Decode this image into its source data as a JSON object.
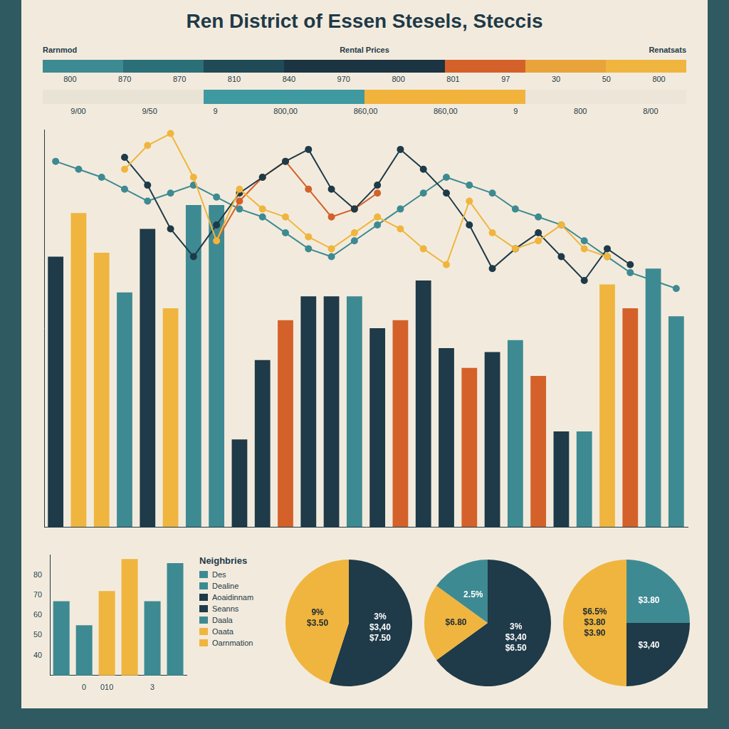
{
  "title": "Ren District of Essen Stesels, Steccis",
  "header": {
    "left": "Rarnmod",
    "center": "Rental Prices",
    "right": "Renatsats"
  },
  "scales": [
    {
      "colors": [
        "#3e8a92",
        "#2b6f78",
        "#1f4a56",
        "#1c3442",
        "#1c3442",
        "#d4612a",
        "#e8a43a",
        "#f0b53e"
      ],
      "labels": [
        "800",
        "870",
        "870",
        "810",
        "840",
        "970",
        "800",
        "801",
        "97",
        "30",
        "50",
        "800"
      ]
    },
    {
      "colors": [
        "#e9e3d6",
        "#3e9aa0",
        "#f2b33d",
        "#ece5d8"
      ],
      "labels": [
        "9/00",
        "9/50",
        "9",
        "800,00",
        "860,00",
        "860,00",
        "9",
        "800",
        "8/00"
      ]
    }
  ],
  "key": {
    "title": "Neighbries",
    "items": [
      {
        "label": "Des",
        "color": "#3e8a92"
      },
      {
        "label": "Dealine",
        "color": "#3e8a92"
      },
      {
        "label": "Aoaidinnam",
        "color": "#1f3a48"
      },
      {
        "label": "Seanns",
        "color": "#1f3a48"
      },
      {
        "label": "Daala",
        "color": "#3e8a92"
      },
      {
        "label": "Oaata",
        "color": "#f0b53e"
      },
      {
        "label": "Oarnmation",
        "color": "#f0b53e"
      }
    ]
  },
  "chart_data": [
    {
      "type": "bar",
      "categories": [
        null,
        null,
        null,
        null,
        null,
        null,
        null,
        null,
        null,
        null,
        null,
        null,
        null,
        null,
        null,
        null,
        null,
        null,
        null,
        null,
        null,
        null,
        null,
        null,
        null,
        null,
        null,
        null
      ],
      "ylim": [
        0,
        100
      ],
      "tick_labels": false,
      "grid": false,
      "series": [
        {
          "type": "bar",
          "colors": [
            "#1f3a48",
            "#f0b53e",
            "#f0b53e",
            "#3e8a92",
            "#1f3a48",
            "#f0b53e",
            "#3e8a92",
            "#3e8a92",
            "#1f3a48",
            "#1f3a48",
            "#d4612a",
            "#1f3a48",
            "#1f3a48",
            "#3e8a92",
            "#1f3a48",
            "#d4612a",
            "#1f3a48",
            "#1f3a48",
            "#d4612a",
            "#1f3a48",
            "#3e8a92",
            "#d4612a",
            "#1f3a48",
            "#3e8a92",
            "#f0b53e",
            "#d4612a",
            "#3e8a92",
            "#3e8a92"
          ],
          "values": [
            68,
            79,
            69,
            59,
            75,
            55,
            81,
            81,
            22,
            42,
            52,
            58,
            58,
            58,
            50,
            52,
            62,
            45,
            40,
            44,
            47,
            38,
            24,
            24,
            61,
            55,
            65,
            53
          ]
        },
        {
          "type": "line",
          "color": "#f0b53e",
          "values": [
            null,
            null,
            null,
            90,
            96,
            99,
            88,
            72,
            85,
            80,
            78,
            73,
            70,
            74,
            78,
            75,
            70,
            66,
            82,
            74,
            70,
            72,
            76,
            70,
            68,
            null,
            null,
            null
          ]
        },
        {
          "type": "line",
          "color": "#1f3a48",
          "values": [
            null,
            null,
            null,
            93,
            86,
            75,
            68,
            76,
            84,
            88,
            92,
            95,
            85,
            80,
            86,
            95,
            90,
            84,
            76,
            65,
            70,
            74,
            68,
            62,
            70,
            66,
            null,
            null
          ]
        },
        {
          "type": "line",
          "color": "#d4612a",
          "values": [
            null,
            null,
            null,
            null,
            null,
            null,
            null,
            72,
            82,
            88,
            92,
            85,
            78,
            80,
            84,
            null,
            null,
            null,
            null,
            null,
            null,
            null,
            null,
            null,
            null,
            null,
            null,
            null
          ]
        },
        {
          "type": "line",
          "color": "#3e8a92",
          "values": [
            92,
            90,
            88,
            85,
            82,
            84,
            86,
            83,
            80,
            78,
            74,
            70,
            68,
            72,
            76,
            80,
            84,
            88,
            86,
            84,
            80,
            78,
            76,
            72,
            68,
            64,
            62,
            60
          ]
        }
      ]
    },
    {
      "type": "bar",
      "categories": [
        null,
        "0",
        "010",
        null,
        "3",
        null
      ],
      "values": [
        67,
        55,
        72,
        88,
        67,
        86
      ],
      "colors": [
        "#3e8a92",
        "#3e8a92",
        "#f0b53e",
        "#f0b53e",
        "#3e8a92",
        "#3e8a92"
      ],
      "ylim": [
        30,
        90
      ],
      "yticks": [
        40,
        50,
        60,
        70,
        80
      ],
      "grid": false
    },
    {
      "type": "pie",
      "values": [
        55,
        45
      ],
      "colors": [
        "#1f3a48",
        "#f0b53e"
      ],
      "annotations": [
        [
          "3%",
          "$3,40",
          "$7.50"
        ],
        [
          "9%",
          "$3.50"
        ]
      ]
    },
    {
      "type": "pie",
      "values": [
        65,
        20,
        15
      ],
      "colors": [
        "#1f3a48",
        "#f0b53e",
        "#3e8a92"
      ],
      "annotations": [
        [
          "3%",
          "$3,40",
          "$6.50"
        ],
        [
          "$6.80"
        ],
        [
          "2.5%"
        ]
      ]
    },
    {
      "type": "pie",
      "values": [
        25,
        25,
        50
      ],
      "colors": [
        "#3e8a92",
        "#1f3a48",
        "#f0b53e"
      ],
      "annotations": [
        [
          "$3.80"
        ],
        [
          "$3,40"
        ],
        [
          "$6.5%",
          "$3.80",
          "$3.90"
        ]
      ]
    }
  ]
}
